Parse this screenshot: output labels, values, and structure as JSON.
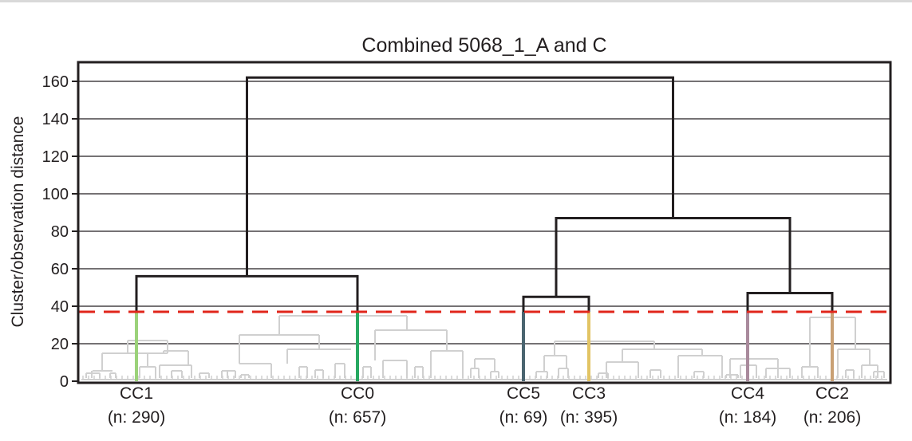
{
  "chart_data": {
    "type": "dendrogram",
    "title": "Combined 5068_1_A and C",
    "ylabel": "Cluster/observation distance",
    "xlabel": "",
    "ylim": [
      0,
      170
    ],
    "yticks": [
      0,
      20,
      40,
      60,
      80,
      100,
      120,
      140,
      160
    ],
    "grid": "horizontal",
    "cut_threshold": 37,
    "cut_line_color": "#e1251b",
    "clusters": [
      {
        "id": "CC1",
        "name": "CC1",
        "count_label": "(n: 290)",
        "n": 290,
        "color": "#9bd27a"
      },
      {
        "id": "CC0",
        "name": "CC0",
        "count_label": "(n: 657)",
        "n": 657,
        "color": "#27a861"
      },
      {
        "id": "CC5",
        "name": "CC5",
        "count_label": "(n: 69)",
        "n": 69,
        "color": "#4a6470"
      },
      {
        "id": "CC3",
        "name": "CC3",
        "count_label": "(n: 395)",
        "n": 395,
        "color": "#e2c464"
      },
      {
        "id": "CC4",
        "name": "CC4",
        "count_label": "(n: 184)",
        "n": 184,
        "color": "#a98a9c"
      },
      {
        "id": "CC2",
        "name": "CC2",
        "count_label": "(n: 206)",
        "n": 206,
        "color": "#c9a074"
      }
    ],
    "merges": [
      {
        "children": [
          "CC1",
          "CC0"
        ],
        "height": 56
      },
      {
        "children": [
          "CC5",
          "CC3"
        ],
        "height": 45
      },
      {
        "children": [
          "CC4",
          "CC2"
        ],
        "height": 47
      },
      {
        "children": [
          "CC5+CC3",
          "CC4+CC2"
        ],
        "height": 87
      },
      {
        "children": [
          "CC1+CC0",
          "CC5+CC3+CC4+CC2"
        ],
        "height": 162
      }
    ],
    "colors": {
      "tree": "#231f20",
      "subtree": "#d0d0d0",
      "grid": "#231f20",
      "axis": "#231f20"
    }
  }
}
